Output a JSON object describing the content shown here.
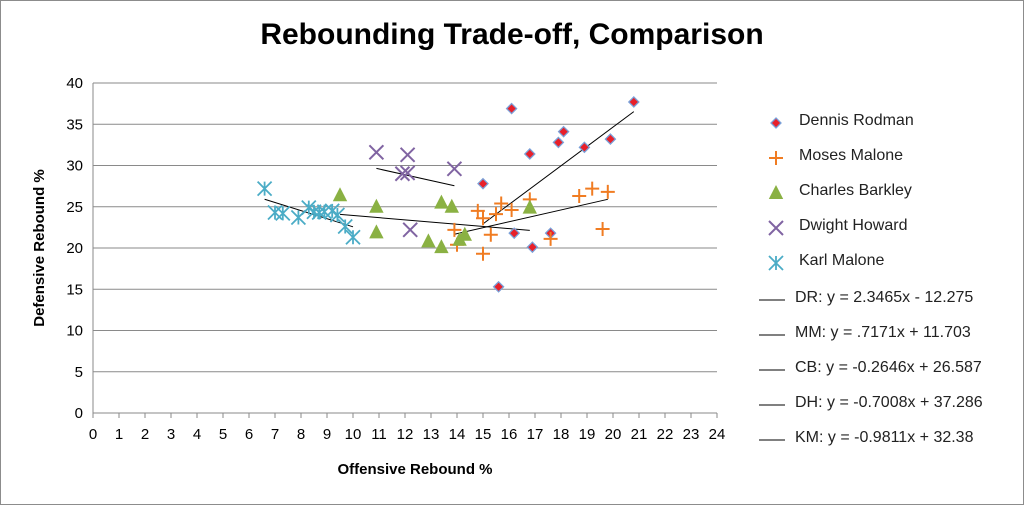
{
  "chart_data": {
    "type": "scatter",
    "title": "Rebounding Trade-off, Comparison",
    "xlabel": "Offensive Rebound %",
    "ylabel": "Defensive Rebound %",
    "xlim": [
      0,
      24
    ],
    "ylim": [
      0,
      40
    ],
    "xticks": [
      "0",
      "1",
      "2",
      "3",
      "4",
      "5",
      "6",
      "7",
      "8",
      "9",
      "10",
      "11",
      "12",
      "13",
      "14",
      "15",
      "16",
      "17",
      "18",
      "19",
      "20",
      "21",
      "22",
      "23",
      "24"
    ],
    "yticks": [
      "0",
      "5",
      "10",
      "15",
      "20",
      "25",
      "30",
      "35",
      "40"
    ],
    "grid": "horizontal",
    "legend_position": "right",
    "series": [
      {
        "name": "Dennis Rodman",
        "marker": "diamond",
        "color": "#e8202a",
        "points": [
          [
            15.0,
            27.8
          ],
          [
            16.1,
            36.9
          ],
          [
            16.8,
            31.4
          ],
          [
            18.1,
            34.1
          ],
          [
            17.9,
            32.8
          ],
          [
            18.9,
            32.2
          ],
          [
            19.9,
            33.2
          ],
          [
            20.8,
            37.7
          ],
          [
            16.2,
            21.8
          ],
          [
            17.6,
            21.8
          ],
          [
            16.9,
            20.1
          ],
          [
            15.6,
            15.3
          ]
        ]
      },
      {
        "name": "Moses Malone",
        "marker": "plus",
        "color": "#f07c22",
        "points": [
          [
            13.9,
            22.2
          ],
          [
            14.0,
            20.4
          ],
          [
            14.8,
            24.5
          ],
          [
            15.0,
            23.6
          ],
          [
            15.0,
            19.3
          ],
          [
            15.3,
            21.6
          ],
          [
            15.5,
            24.1
          ],
          [
            15.7,
            25.4
          ],
          [
            16.1,
            24.6
          ],
          [
            16.8,
            25.9
          ],
          [
            17.6,
            21.1
          ],
          [
            18.7,
            26.3
          ],
          [
            19.2,
            27.2
          ],
          [
            19.8,
            26.8
          ],
          [
            19.6,
            22.3
          ]
        ]
      },
      {
        "name": "Charles Barkley",
        "marker": "triangle",
        "color": "#8ab143",
        "points": [
          [
            9.5,
            26.4
          ],
          [
            10.9,
            25.0
          ],
          [
            10.9,
            21.9
          ],
          [
            12.9,
            20.8
          ],
          [
            13.4,
            20.1
          ],
          [
            13.4,
            25.5
          ],
          [
            13.8,
            25.0
          ],
          [
            14.1,
            21.0
          ],
          [
            14.3,
            21.6
          ],
          [
            16.8,
            24.9
          ]
        ]
      },
      {
        "name": "Dwight Howard",
        "marker": "x",
        "color": "#8064a2",
        "points": [
          [
            10.9,
            31.6
          ],
          [
            11.9,
            29.0
          ],
          [
            12.1,
            31.3
          ],
          [
            12.1,
            29.1
          ],
          [
            12.2,
            22.2
          ],
          [
            13.9,
            29.6
          ]
        ]
      },
      {
        "name": "Karl Malone",
        "marker": "asterisk",
        "color": "#4bacc6",
        "points": [
          [
            6.6,
            27.2
          ],
          [
            7.0,
            24.3
          ],
          [
            7.3,
            24.2
          ],
          [
            7.9,
            23.7
          ],
          [
            8.3,
            24.9
          ],
          [
            8.5,
            24.4
          ],
          [
            8.7,
            24.3
          ],
          [
            8.9,
            24.4
          ],
          [
            9.2,
            24.5
          ],
          [
            9.4,
            24.0
          ],
          [
            9.7,
            22.6
          ],
          [
            10.0,
            21.3
          ]
        ]
      }
    ],
    "trendlines": [
      {
        "label": "DR: y = 2.3465x - 12.275",
        "slope": 2.3465,
        "intercept": -12.275,
        "x_range": [
          15.0,
          20.8
        ],
        "color": "#000000"
      },
      {
        "label": "MM: y = .7171x + 11.703",
        "slope": 0.7171,
        "intercept": 11.703,
        "x_range": [
          13.9,
          19.8
        ],
        "color": "#000000"
      },
      {
        "label": "CB: y = -0.2646x + 26.587",
        "slope": -0.2646,
        "intercept": 26.587,
        "x_range": [
          9.5,
          16.8
        ],
        "color": "#000000"
      },
      {
        "label": "DH: y = -0.7008x + 37.286",
        "slope": -0.7008,
        "intercept": 37.286,
        "x_range": [
          10.9,
          13.9
        ],
        "color": "#000000"
      },
      {
        "label": "KM: y = -0.9811x + 32.38",
        "slope": -0.9811,
        "intercept": 32.38,
        "x_range": [
          6.6,
          10.0
        ],
        "color": "#000000"
      }
    ]
  }
}
